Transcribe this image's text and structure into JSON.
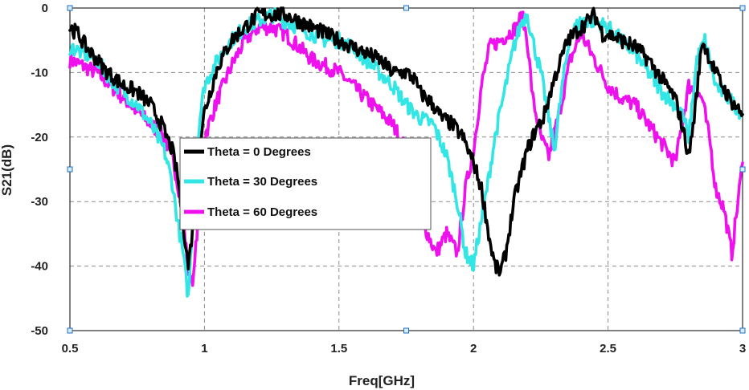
{
  "chart_data": {
    "type": "line",
    "xlabel": "Freq[GHz]",
    "ylabel": "S21(dB)",
    "xlim": [
      0.5,
      3
    ],
    "ylim": [
      -50,
      0
    ],
    "xticks": [
      0.5,
      1,
      1.5,
      2,
      2.5,
      3
    ],
    "xtick_labels": [
      "0.5",
      "1",
      "1.5",
      "2",
      "2.5",
      "3"
    ],
    "yticks": [
      0,
      -10,
      -20,
      -30,
      -40,
      -50
    ],
    "ytick_labels": [
      "0",
      "-10",
      "-20",
      "-30",
      "-40",
      "-50"
    ],
    "grid": true,
    "legend_position": "center-left",
    "series": [
      {
        "name": "Theta = 0 Degrees",
        "color": "#000000",
        "x": [
          0.5,
          0.53,
          0.56,
          0.6,
          0.64,
          0.7,
          0.75,
          0.8,
          0.84,
          0.88,
          0.9,
          0.92,
          0.94,
          0.96,
          0.98,
          1.0,
          1.05,
          1.1,
          1.15,
          1.2,
          1.25,
          1.3,
          1.35,
          1.4,
          1.45,
          1.5,
          1.55,
          1.6,
          1.65,
          1.7,
          1.75,
          1.78,
          1.8,
          1.85,
          1.88,
          1.92,
          1.96,
          2.0,
          2.03,
          2.06,
          2.08,
          2.1,
          2.12,
          2.15,
          2.18,
          2.2,
          2.23,
          2.26,
          2.3,
          2.35,
          2.4,
          2.45,
          2.48,
          2.5,
          2.55,
          2.6,
          2.65,
          2.7,
          2.75,
          2.78,
          2.8,
          2.82,
          2.85,
          2.9,
          2.95,
          3.0
        ],
        "y": [
          -3,
          -4,
          -6,
          -8,
          -10,
          -12,
          -13,
          -15,
          -18,
          -22,
          -26,
          -33,
          -40,
          -33,
          -22,
          -16,
          -9,
          -5,
          -3,
          -1,
          -1,
          -1,
          -2,
          -3,
          -4,
          -5,
          -6,
          -7,
          -8,
          -10,
          -10,
          -11,
          -13,
          -15,
          -17,
          -18,
          -20,
          -24,
          -28,
          -36,
          -40,
          -41,
          -38,
          -30,
          -25,
          -22,
          -19,
          -17,
          -11,
          -5,
          -3,
          -1,
          -4,
          -4,
          -5,
          -6,
          -8,
          -11,
          -14,
          -19,
          -23,
          -17,
          -5,
          -10,
          -14,
          -16.5
        ]
      },
      {
        "name": "Theta = 30 Degrees",
        "color": "#33E6E6",
        "x": [
          0.5,
          0.55,
          0.6,
          0.65,
          0.7,
          0.75,
          0.8,
          0.85,
          0.88,
          0.9,
          0.92,
          0.94,
          0.96,
          0.98,
          1.0,
          1.05,
          1.1,
          1.15,
          1.2,
          1.25,
          1.3,
          1.35,
          1.4,
          1.45,
          1.5,
          1.55,
          1.6,
          1.65,
          1.7,
          1.75,
          1.8,
          1.85,
          1.9,
          1.94,
          1.97,
          2.0,
          2.02,
          2.05,
          2.08,
          2.12,
          2.15,
          2.18,
          2.2,
          2.22,
          2.25,
          2.28,
          2.3,
          2.33,
          2.36,
          2.4,
          2.45,
          2.5,
          2.55,
          2.6,
          2.65,
          2.7,
          2.75,
          2.78,
          2.8,
          2.83,
          2.86,
          2.9,
          2.95,
          3.0
        ],
        "y": [
          -6,
          -7,
          -8,
          -11,
          -13,
          -15,
          -18,
          -22,
          -27,
          -33,
          -38,
          -45,
          -30,
          -18,
          -12,
          -8,
          -5,
          -3,
          -2,
          -1,
          -2,
          -3,
          -4,
          -5,
          -5,
          -6,
          -8,
          -10,
          -12,
          -15,
          -17,
          -18,
          -23,
          -30,
          -38,
          -40,
          -35,
          -28,
          -20,
          -12,
          -6,
          -2,
          -1,
          -5,
          -10,
          -17,
          -22,
          -12,
          -4,
          -2,
          -2,
          -3,
          -5,
          -7,
          -10,
          -13,
          -15,
          -17,
          -20,
          -8,
          -5,
          -12,
          -14,
          -16.5
        ]
      },
      {
        "name": "Theta = 60 Degrees",
        "color": "#EE11EE",
        "x": [
          0.5,
          0.55,
          0.6,
          0.65,
          0.7,
          0.75,
          0.8,
          0.85,
          0.88,
          0.9,
          0.92,
          0.94,
          0.96,
          0.98,
          1.0,
          1.05,
          1.1,
          1.15,
          1.2,
          1.25,
          1.3,
          1.35,
          1.4,
          1.45,
          1.5,
          1.55,
          1.6,
          1.65,
          1.7,
          1.75,
          1.78,
          1.82,
          1.86,
          1.9,
          1.94,
          1.97,
          2.0,
          2.03,
          2.06,
          2.1,
          2.13,
          2.16,
          2.18,
          2.2,
          2.22,
          2.25,
          2.28,
          2.32,
          2.36,
          2.4,
          2.45,
          2.5,
          2.55,
          2.6,
          2.65,
          2.7,
          2.75,
          2.8,
          2.85,
          2.88,
          2.9,
          2.93,
          2.96,
          3.0
        ],
        "y": [
          -8,
          -9,
          -10,
          -12,
          -14,
          -16,
          -18,
          -20,
          -23,
          -27,
          -32,
          -41,
          -42,
          -30,
          -20,
          -14,
          -9,
          -5,
          -3,
          -3,
          -4,
          -6,
          -8,
          -9,
          -10,
          -12,
          -14,
          -16,
          -18,
          -22,
          -28,
          -34,
          -38,
          -35,
          -38,
          -28,
          -22,
          -12,
          -6,
          -5,
          -4,
          -3,
          -1,
          -5,
          -14,
          -20,
          -23,
          -16,
          -8,
          -4,
          -8,
          -12,
          -14,
          -15,
          -18,
          -21,
          -24,
          -12,
          -14,
          -21,
          -28,
          -31,
          -38,
          -24
        ]
      }
    ]
  }
}
